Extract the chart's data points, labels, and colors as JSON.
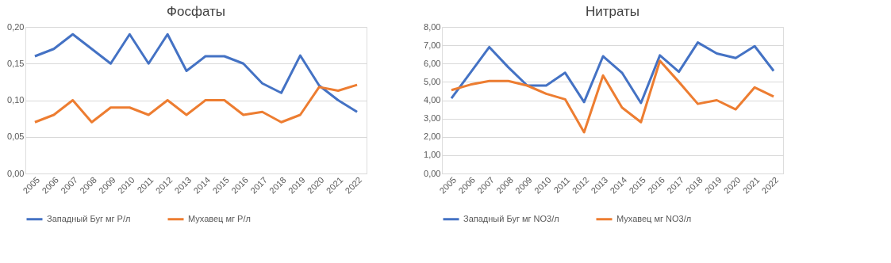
{
  "chart_data": [
    {
      "type": "line",
      "title": "Фосфаты",
      "categories": [
        "2005",
        "2006",
        "2007",
        "2008",
        "2009",
        "2010",
        "2011",
        "2012",
        "2013",
        "2014",
        "2015",
        "2016",
        "2017",
        "2018",
        "2019",
        "2020",
        "2021",
        "2022"
      ],
      "series": [
        {
          "name": "Западный Буг мг Р/л",
          "color": "#4472c4",
          "values": [
            0.16,
            0.17,
            0.19,
            0.17,
            0.15,
            0.19,
            0.15,
            0.19,
            0.14,
            0.16,
            0.16,
            0.15,
            0.123,
            0.11,
            0.161,
            0.12,
            0.1,
            0.084
          ]
        },
        {
          "name": "Мухавец мг Р/л",
          "color": "#ed7d31",
          "values": [
            0.07,
            0.08,
            0.1,
            0.07,
            0.09,
            0.09,
            0.08,
            0.1,
            0.08,
            0.1,
            0.1,
            0.08,
            0.084,
            0.07,
            0.08,
            0.118,
            0.113,
            0.121
          ]
        }
      ],
      "ylim": [
        0,
        0.2
      ],
      "yticks": [
        {
          "value": 0,
          "label": "0,00"
        },
        {
          "value": 0.05,
          "label": "0,05"
        },
        {
          "value": 0.1,
          "label": "0,10"
        },
        {
          "value": 0.15,
          "label": "0,15"
        },
        {
          "value": 0.2,
          "label": "0,20"
        }
      ],
      "grid": "y",
      "legend": "bottom",
      "marker": "none",
      "line_style": "solid"
    },
    {
      "type": "line",
      "title": "Нитраты",
      "categories": [
        "2005",
        "2006",
        "2007",
        "2008",
        "2009",
        "2010",
        "2011",
        "2012",
        "2013",
        "2014",
        "2015",
        "2016",
        "2017",
        "2018",
        "2019",
        "2020",
        "2021",
        "2022"
      ],
      "series": [
        {
          "name": "Западный Буг мг NO3/л",
          "color": "#4472c4",
          "values": [
            4.1,
            5.5,
            6.9,
            5.8,
            4.8,
            4.8,
            5.5,
            3.9,
            6.4,
            5.5,
            3.85,
            6.45,
            5.55,
            7.15,
            6.55,
            6.3,
            6.95,
            5.6
          ]
        },
        {
          "name": "Мухавец мг NO3/л",
          "color": "#ed7d31",
          "values": [
            4.55,
            4.85,
            5.05,
            5.05,
            4.8,
            4.35,
            4.05,
            2.25,
            5.35,
            3.6,
            2.8,
            6.15,
            5.0,
            3.8,
            4.0,
            3.5,
            4.7,
            4.2
          ]
        }
      ],
      "ylim": [
        0,
        8
      ],
      "yticks": [
        {
          "value": 0,
          "label": "0,00"
        },
        {
          "value": 1,
          "label": "1,00"
        },
        {
          "value": 2,
          "label": "2,00"
        },
        {
          "value": 3,
          "label": "3,00"
        },
        {
          "value": 4,
          "label": "4,00"
        },
        {
          "value": 5,
          "label": "5,00"
        },
        {
          "value": 6,
          "label": "6,00"
        },
        {
          "value": 7,
          "label": "7,00"
        },
        {
          "value": 8,
          "label": "8,00"
        }
      ],
      "grid": "y",
      "legend": "bottom",
      "marker": "none",
      "line_style": "solid"
    }
  ]
}
